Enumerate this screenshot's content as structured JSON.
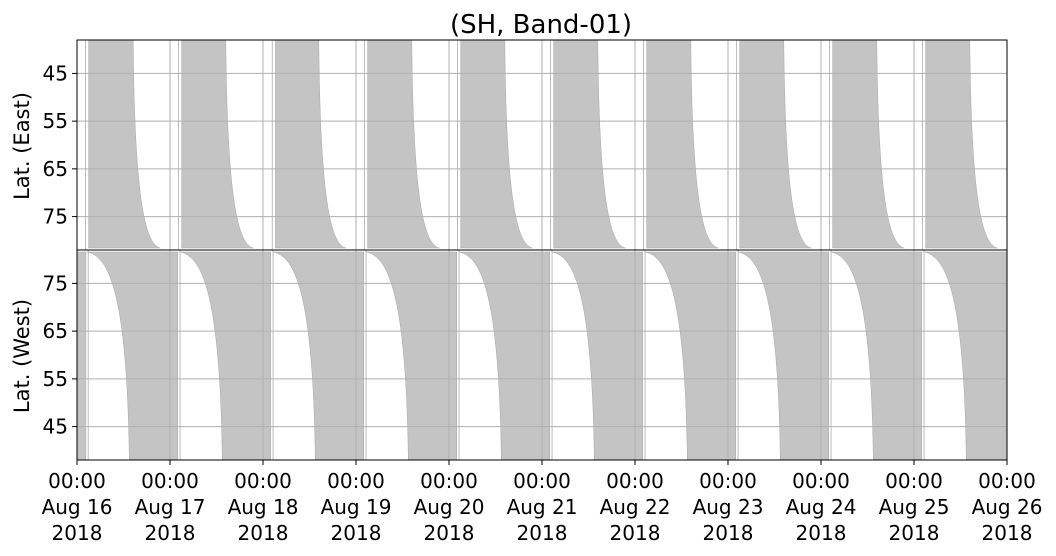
{
  "chart_data": {
    "type": "area",
    "title": "(SH, Band-01)",
    "panels": [
      {
        "name": "East",
        "ylabel": "Lat. (East)",
        "yticks": [
          45,
          55,
          65,
          75
        ],
        "ylim": [
          38,
          82
        ],
        "y_inverted": true,
        "band_fill_color": "#c4c4c4",
        "bands": [
          {
            "start_hours": 3.0,
            "end_top_hours": 14.5,
            "end_bottom_hours": 21.5
          },
          {
            "start_hours": 27.0,
            "end_top_hours": 38.4,
            "end_bottom_hours": 45.5
          },
          {
            "start_hours": 51.2,
            "end_top_hours": 62.4,
            "end_bottom_hours": 69.4
          },
          {
            "start_hours": 75.0,
            "end_top_hours": 86.4,
            "end_bottom_hours": 93.5
          },
          {
            "start_hours": 99.0,
            "end_top_hours": 110.4,
            "end_bottom_hours": 117.5
          },
          {
            "start_hours": 123.0,
            "end_top_hours": 134.4,
            "end_bottom_hours": 141.5
          },
          {
            "start_hours": 147.0,
            "end_top_hours": 158.4,
            "end_bottom_hours": 165.5
          },
          {
            "start_hours": 171.0,
            "end_top_hours": 182.4,
            "end_bottom_hours": 189.5
          },
          {
            "start_hours": 195.0,
            "end_top_hours": 206.4,
            "end_bottom_hours": 213.5
          },
          {
            "start_hours": 219.0,
            "end_top_hours": 230.4,
            "end_bottom_hours": 237.5
          }
        ]
      },
      {
        "name": "West",
        "ylabel": "Lat. (West)",
        "yticks": [
          75,
          65,
          55,
          45
        ],
        "ylim": [
          38,
          82
        ],
        "y_inverted": false,
        "band_fill_color": "#c4c4c4",
        "bands": [
          {
            "start_top_hours": 0.0,
            "start_bottom_hours": 0.0,
            "end_hours": 2.3
          },
          {
            "start_top_hours": 2.5,
            "start_bottom_hours": 13.5,
            "end_hours": 26.0
          },
          {
            "start_top_hours": 26.5,
            "start_bottom_hours": 37.5,
            "end_hours": 50.0
          },
          {
            "start_top_hours": 50.5,
            "start_bottom_hours": 61.5,
            "end_hours": 74.0
          },
          {
            "start_top_hours": 74.5,
            "start_bottom_hours": 85.5,
            "end_hours": 98.0
          },
          {
            "start_top_hours": 98.5,
            "start_bottom_hours": 109.5,
            "end_hours": 122.0
          },
          {
            "start_top_hours": 122.5,
            "start_bottom_hours": 133.5,
            "end_hours": 146.0
          },
          {
            "start_top_hours": 146.5,
            "start_bottom_hours": 157.5,
            "end_hours": 170.0
          },
          {
            "start_top_hours": 170.5,
            "start_bottom_hours": 181.5,
            "end_hours": 194.0
          },
          {
            "start_top_hours": 194.5,
            "start_bottom_hours": 205.5,
            "end_hours": 218.0
          },
          {
            "start_top_hours": 218.5,
            "start_bottom_hours": 229.5,
            "end_hours": 240.0
          }
        ]
      }
    ],
    "x_range_hours": [
      0,
      240
    ],
    "xticks": [
      {
        "hours": 0,
        "time": "00:00",
        "date": "Aug 16",
        "year": "2018"
      },
      {
        "hours": 24,
        "time": "00:00",
        "date": "Aug 17",
        "year": "2018"
      },
      {
        "hours": 48,
        "time": "00:00",
        "date": "Aug 18",
        "year": "2018"
      },
      {
        "hours": 72,
        "time": "00:00",
        "date": "Aug 19",
        "year": "2018"
      },
      {
        "hours": 96,
        "time": "00:00",
        "date": "Aug 20",
        "year": "2018"
      },
      {
        "hours": 120,
        "time": "00:00",
        "date": "Aug 21",
        "year": "2018"
      },
      {
        "hours": 144,
        "time": "00:00",
        "date": "Aug 22",
        "year": "2018"
      },
      {
        "hours": 168,
        "time": "00:00",
        "date": "Aug 23",
        "year": "2018"
      },
      {
        "hours": 192,
        "time": "00:00",
        "date": "Aug 24",
        "year": "2018"
      },
      {
        "hours": 216,
        "time": "00:00",
        "date": "Aug 25",
        "year": "2018"
      },
      {
        "hours": 240,
        "time": "00:00",
        "date": "Aug 26",
        "year": "2018"
      }
    ],
    "grid": true
  }
}
